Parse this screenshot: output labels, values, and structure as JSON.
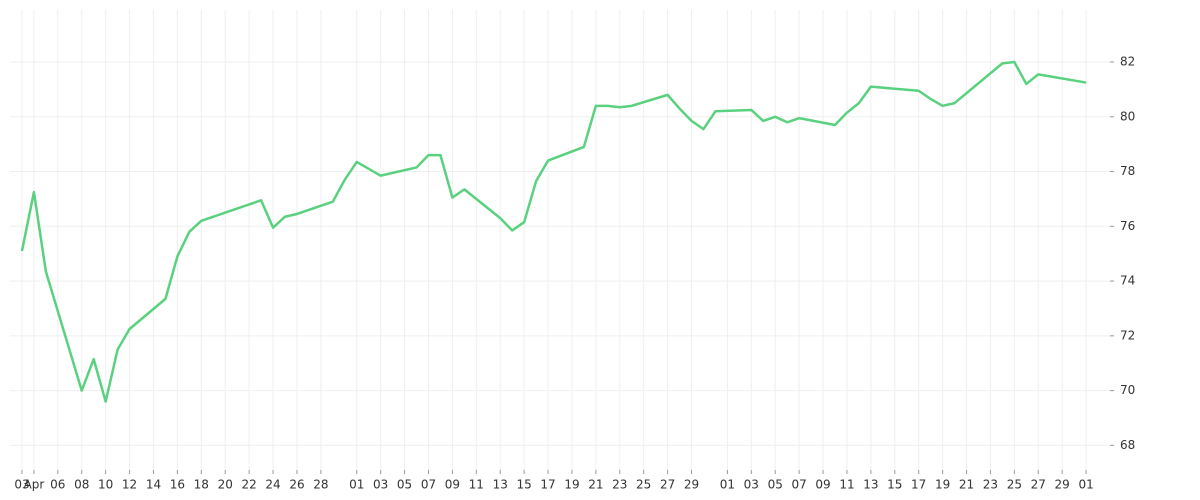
{
  "chart_data": {
    "type": "line",
    "x": [
      "Apr 03",
      "Apr 04",
      "Apr 05",
      "Apr 08",
      "Apr 09",
      "Apr 10",
      "Apr 11",
      "Apr 12",
      "Apr 15",
      "Apr 16",
      "Apr 17",
      "Apr 18",
      "Apr 23",
      "Apr 24",
      "Apr 25",
      "Apr 26",
      "Apr 29",
      "Apr 30",
      "May 01",
      "May 03",
      "May 06",
      "May 07",
      "May 08",
      "May 09",
      "May 10",
      "May 13",
      "May 14",
      "May 15",
      "May 16",
      "May 17",
      "May 20",
      "May 21",
      "May 22",
      "May 23",
      "May 24",
      "May 27",
      "May 28",
      "May 29",
      "May 30",
      "May 31",
      "Jun 03",
      "Jun 04",
      "Jun 05",
      "Jun 06",
      "Jun 07",
      "Jun 10",
      "Jun 11",
      "Jun 12",
      "Jun 13",
      "Jun 17",
      "Jun 18",
      "Jun 19",
      "Jun 20",
      "Jun 24",
      "Jun 25",
      "Jun 26",
      "Jun 27",
      "Jul 01"
    ],
    "series": [
      {
        "color": "#5ad17f",
        "values": [
          75.1,
          77.25,
          74.35,
          70.0,
          71.15,
          69.6,
          71.5,
          72.25,
          73.35,
          74.9,
          75.8,
          76.2,
          76.95,
          75.95,
          76.35,
          76.45,
          76.9,
          77.7,
          78.35,
          77.85,
          78.15,
          78.6,
          78.6,
          77.05,
          77.35,
          76.3,
          75.85,
          76.15,
          77.65,
          78.4,
          78.9,
          80.4,
          80.4,
          80.35,
          80.4,
          80.8,
          80.3,
          79.85,
          79.55,
          80.2,
          80.25,
          79.85,
          80.0,
          79.8,
          79.95,
          79.7,
          80.15,
          80.5,
          81.1,
          80.95,
          80.65,
          80.4,
          80.5,
          81.95,
          82.0,
          81.2,
          81.55,
          81.25
        ]
      }
    ],
    "xlim": [
      "Apr 02",
      "Jul 03"
    ],
    "xticks": [
      {
        "value": "Apr 03",
        "label": "03"
      },
      {
        "value": "Apr 04",
        "label": "Apr"
      },
      {
        "value": "Apr 06",
        "label": "06"
      },
      {
        "value": "Apr 08",
        "label": "08"
      },
      {
        "value": "Apr 10",
        "label": "10"
      },
      {
        "value": "Apr 12",
        "label": "12"
      },
      {
        "value": "Apr 14",
        "label": "14"
      },
      {
        "value": "Apr 16",
        "label": "16"
      },
      {
        "value": "Apr 18",
        "label": "18"
      },
      {
        "value": "Apr 20",
        "label": "20"
      },
      {
        "value": "Apr 22",
        "label": "22"
      },
      {
        "value": "Apr 24",
        "label": "24"
      },
      {
        "value": "Apr 26",
        "label": "26"
      },
      {
        "value": "Apr 28",
        "label": "28"
      },
      {
        "value": "May 01",
        "label": "01"
      },
      {
        "value": "May 03",
        "label": "03"
      },
      {
        "value": "May 05",
        "label": "05"
      },
      {
        "value": "May 07",
        "label": "07"
      },
      {
        "value": "May 09",
        "label": "09"
      },
      {
        "value": "May 11",
        "label": "11"
      },
      {
        "value": "May 13",
        "label": "13"
      },
      {
        "value": "May 15",
        "label": "15"
      },
      {
        "value": "May 17",
        "label": "17"
      },
      {
        "value": "May 19",
        "label": "19"
      },
      {
        "value": "May 21",
        "label": "21"
      },
      {
        "value": "May 23",
        "label": "23"
      },
      {
        "value": "May 25",
        "label": "25"
      },
      {
        "value": "May 27",
        "label": "27"
      },
      {
        "value": "May 29",
        "label": "29"
      },
      {
        "value": "Jun 01",
        "label": "01"
      },
      {
        "value": "Jun 03",
        "label": "03"
      },
      {
        "value": "Jun 05",
        "label": "05"
      },
      {
        "value": "Jun 07",
        "label": "07"
      },
      {
        "value": "Jun 09",
        "label": "09"
      },
      {
        "value": "Jun 11",
        "label": "11"
      },
      {
        "value": "Jun 13",
        "label": "13"
      },
      {
        "value": "Jun 15",
        "label": "15"
      },
      {
        "value": "Jun 17",
        "label": "17"
      },
      {
        "value": "Jun 19",
        "label": "19"
      },
      {
        "value": "Jun 21",
        "label": "21"
      },
      {
        "value": "Jun 23",
        "label": "23"
      },
      {
        "value": "Jun 25",
        "label": "25"
      },
      {
        "value": "Jun 27",
        "label": "27"
      },
      {
        "value": "Jun 29",
        "label": "29"
      },
      {
        "value": "Jul 01",
        "label": "01"
      }
    ],
    "ylim": [
      67.1,
      83.9
    ],
    "yticks": [
      68,
      70,
      72,
      74,
      76,
      78,
      80,
      82
    ],
    "grid": true
  }
}
